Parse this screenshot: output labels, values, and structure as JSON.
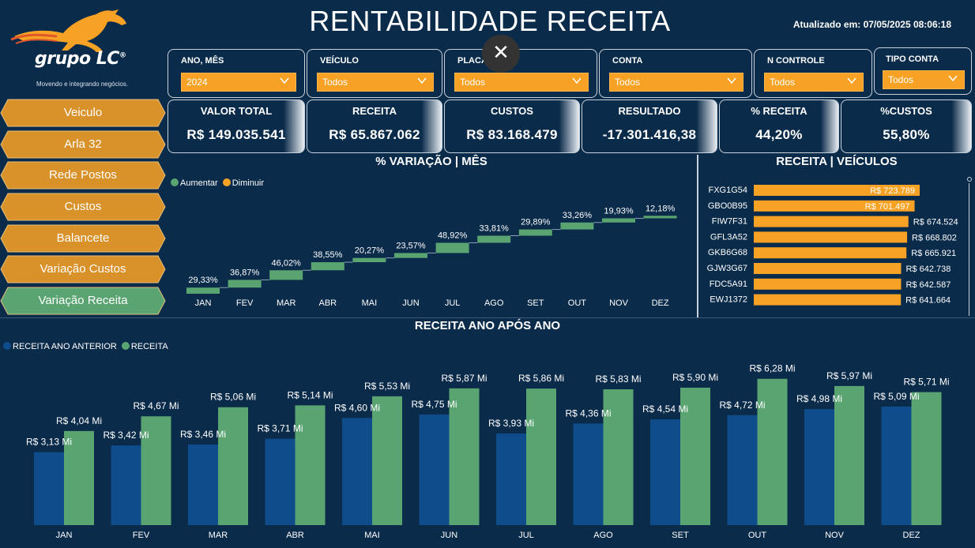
{
  "header": {
    "title": "RENTABILIDADE RECEITA",
    "updated": "Atualizado em: 07/05/2025 08:06:18",
    "logo_text": "grupo LC",
    "logo_reg": "®",
    "logo_tagline": "Movendo e integrando negócios.",
    "close_glyph": "✕"
  },
  "filters": [
    {
      "label": "ANO, MÊS",
      "value": "2024"
    },
    {
      "label": "VEÍCULO",
      "value": "Todos"
    },
    {
      "label": "PLACA",
      "value": "Todos"
    },
    {
      "label": "CONTA",
      "value": "Todos"
    },
    {
      "label": "N CONTROLE",
      "value": "Todos"
    },
    {
      "label": "TIPO CONTA",
      "value": "Todos"
    }
  ],
  "nav": [
    {
      "label": "Veiculo"
    },
    {
      "label": "Arla 32"
    },
    {
      "label": "Rede Postos"
    },
    {
      "label": "Custos"
    },
    {
      "label": "Balancete"
    },
    {
      "label": "Variação Custos"
    },
    {
      "label": "Variação Receita"
    }
  ],
  "kpis": [
    {
      "label": "VALOR TOTAL",
      "value": "R$ 149.035.541"
    },
    {
      "label": "RECEITA",
      "value": "R$ 65.867.062"
    },
    {
      "label": "CUSTOS",
      "value": "R$ 83.168.479"
    },
    {
      "label": "RESULTADO",
      "value": "-17.301.416,38"
    },
    {
      "label": "% RECEITA",
      "value": "44,20%"
    },
    {
      "label": "%CUSTOS",
      "value": "55,80%"
    }
  ],
  "colors": {
    "background": "#0b2b4a",
    "orange": "#f7a224",
    "green": "#5aa472",
    "blue": "#0f4c8c",
    "nav_active": "#5aa472",
    "nav_inactive": "#d9912a"
  },
  "chart_data": [
    {
      "type": "waterfall",
      "title": "% VARIAÇÃO | MÊS",
      "legend": [
        "Aumentar",
        "Diminuir"
      ],
      "categories": [
        "JAN",
        "FEV",
        "MAR",
        "ABR",
        "MAI",
        "JUN",
        "JUL",
        "AGO",
        "SET",
        "OUT",
        "NOV",
        "DEZ"
      ],
      "values": [
        29.33,
        36.87,
        46.02,
        38.55,
        20.27,
        23.57,
        48.92,
        33.81,
        29.89,
        33.26,
        19.93,
        12.18
      ],
      "labels": [
        "29,33%",
        "36,87%",
        "46,02%",
        "38,55%",
        "20,27%",
        "23,57%",
        "48,92%",
        "33,81%",
        "29,89%",
        "33,26%",
        "19,93%",
        "12,18%"
      ]
    },
    {
      "type": "bar",
      "orientation": "horizontal",
      "title": "RECEITA | VEÍCULOS",
      "categories": [
        "FXG1G54",
        "GBO0B95",
        "FIW7F31",
        "GFL3A52",
        "GKB6G68",
        "GJW3G67",
        "FDC5A91",
        "EWJ1372"
      ],
      "values": [
        723789,
        701497,
        674524,
        668802,
        665921,
        642738,
        642587,
        641664
      ],
      "labels": [
        "R$ 723.789",
        "R$ 701.497",
        "R$ 674.524",
        "R$ 668.802",
        "R$ 665.921",
        "R$ 642.738",
        "R$ 642.587",
        "R$ 641.664"
      ]
    },
    {
      "type": "bar",
      "title": "RECEITA ANO APÓS ANO",
      "categories": [
        "JAN",
        "FEV",
        "MAR",
        "ABR",
        "MAI",
        "JUN",
        "JUL",
        "AGO",
        "SET",
        "OUT",
        "NOV",
        "DEZ"
      ],
      "series": [
        {
          "name": "RECEITA ANO ANTERIOR",
          "values": [
            3.13,
            3.42,
            3.46,
            3.71,
            4.6,
            4.75,
            3.93,
            4.36,
            4.54,
            4.72,
            4.98,
            5.09
          ],
          "labels": [
            "R$ 3,13 Mi",
            "R$ 3,42 Mi",
            "R$ 3,46 Mi",
            "R$ 3,71 Mi",
            "R$ 4,60 Mi",
            "R$ 4,75 Mi",
            "R$ 3,93 Mi",
            "R$ 4,36 Mi",
            "R$ 4,54 Mi",
            "R$ 4,72 Mi",
            "R$ 4,98 Mi",
            "R$ 5,09 Mi"
          ]
        },
        {
          "name": "RECEITA",
          "values": [
            4.04,
            4.67,
            5.06,
            5.14,
            5.53,
            5.87,
            5.86,
            5.83,
            5.9,
            6.28,
            5.97,
            5.71
          ],
          "labels": [
            "R$ 4,04 Mi",
            "R$ 4,67 Mi",
            "R$ 5,06 Mi",
            "R$ 5,14 Mi",
            "R$ 5,53 Mi",
            "R$ 5,87 Mi",
            "R$ 5,86 Mi",
            "R$ 5,83 Mi",
            "R$ 5,90 Mi",
            "R$ 6,28 Mi",
            "R$ 5,97 Mi",
            "R$ 5,71 Mi"
          ]
        }
      ]
    }
  ]
}
